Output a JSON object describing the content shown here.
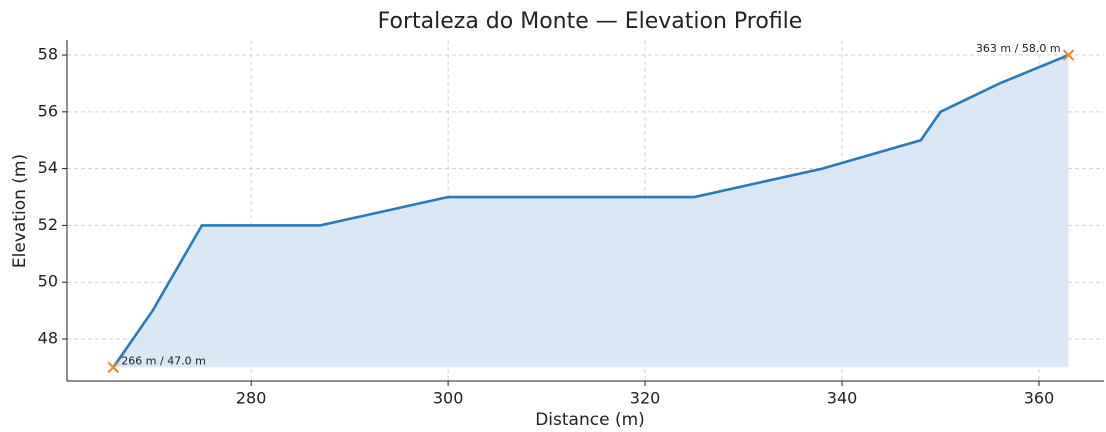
{
  "chart_data": {
    "type": "area_line",
    "title": "Fortaleza do Monte — Elevation Profile",
    "xlabel": "Distance (m)",
    "ylabel": "Elevation (m)",
    "x": [
      266,
      270,
      275,
      287,
      300,
      325,
      338,
      348,
      350,
      356,
      363
    ],
    "series": [
      {
        "name": "Elevation",
        "color": "#2b7bba",
        "fill": "#dae7f4",
        "values": [
          47,
          49,
          52,
          52,
          53,
          53,
          54,
          55,
          56,
          57,
          58
        ]
      }
    ],
    "xlim": [
      261.3,
      366.6
    ],
    "xticks": [
      280,
      300,
      320,
      340,
      360
    ],
    "ylim": [
      46.52,
      58.53
    ],
    "yticks": [
      48,
      50,
      52,
      54,
      56,
      58
    ],
    "grid": true,
    "annotations": [
      {
        "text": "266 m / 47.0 m",
        "x": 266,
        "y": 47,
        "color": "#e8892b"
      },
      {
        "text": "363 m / 58.0 m",
        "x": 363,
        "y": 58,
        "color": "#e8892b"
      }
    ]
  }
}
